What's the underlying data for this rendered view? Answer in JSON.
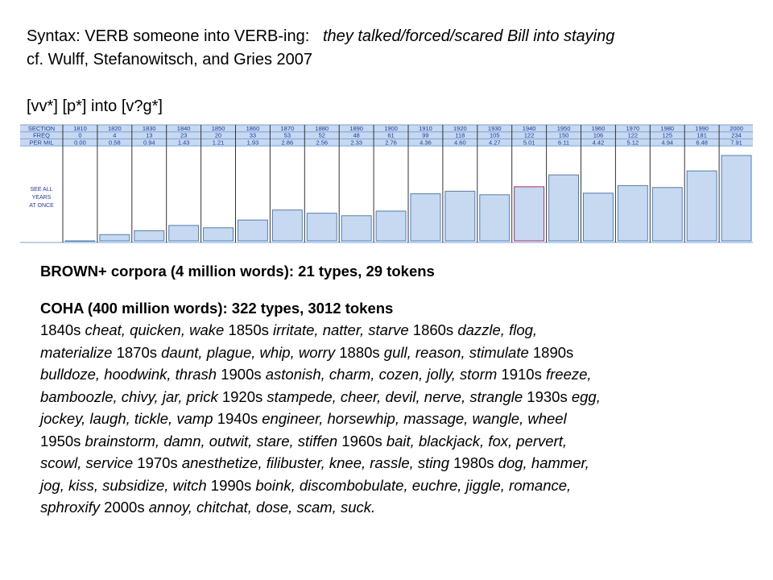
{
  "header": {
    "line1_label": "Syntax:  VERB someone into VERB-ing:",
    "line1_example": "they talked/forced/scared  Bill into staying",
    "line2": "cf. Wulff, Stefanowitsch, and Gries 2007",
    "query": "[vv*] [p*] into [v?g*]"
  },
  "chart_data": {
    "type": "bar",
    "row_labels": [
      "SECTION",
      "FREQ",
      "PER MIL"
    ],
    "categories": [
      "1810",
      "1820",
      "1830",
      "1840",
      "1850",
      "1860",
      "1870",
      "1880",
      "1890",
      "1900",
      "1910",
      "1920",
      "1930",
      "1940",
      "1950",
      "1960",
      "1970",
      "1980",
      "1990",
      "2000"
    ],
    "freq": [
      "0",
      "4",
      "13",
      "23",
      "20",
      "33",
      "53",
      "52",
      "48",
      "61",
      "99",
      "118",
      "105",
      "122",
      "150",
      "106",
      "122",
      "125",
      "181",
      "234"
    ],
    "per_mil_labels": [
      "0.00",
      "0.58",
      "0.94",
      "1.43",
      "1.21",
      "1.93",
      "2.86",
      "2.56",
      "2.33",
      "2.76",
      "4.36",
      "4.60",
      "4.27",
      "5.01",
      "6.11",
      "4.42",
      "5.12",
      "4.94",
      "6.48",
      "7.91"
    ],
    "values": [
      0.0,
      0.58,
      0.94,
      1.43,
      1.21,
      1.93,
      2.86,
      2.56,
      2.33,
      2.76,
      4.36,
      4.6,
      4.27,
      5.01,
      6.11,
      4.42,
      5.12,
      4.94,
      6.48,
      7.91
    ],
    "ylim": [
      0,
      7.91
    ],
    "see_all_lines": [
      "SEE ALL",
      "YEARS",
      "AT ONCE"
    ],
    "highlighted_category": "1940",
    "colors": {
      "header_bg": "#c6d9f1",
      "bar_fill": "#c6d9f1",
      "bar_stroke": "#4a7ebb",
      "highlight_stroke": "#a0306a",
      "label_color": "#1f3a9a",
      "grid": "#7f9fcf"
    }
  },
  "brown": "BROWN+ corpora (4 million words): 21 types, 29 tokens",
  "coha": {
    "title": "COHA (400 million words): 322 types, 3012 tokens",
    "lines": [
      [
        {
          "t": "1840s "
        },
        {
          "t": "cheat, quicken, wake",
          "i": true
        },
        {
          "t": " 1850s "
        },
        {
          "t": "irritate, natter, starve",
          "i": true
        },
        {
          "t": " 1860s "
        },
        {
          "t": "dazzle, flog,",
          "i": true
        }
      ],
      [
        {
          "t": "materialize",
          "i": true
        },
        {
          "t": " 1870s "
        },
        {
          "t": "daunt, plague, whip, worry",
          "i": true
        },
        {
          "t": " 1880s "
        },
        {
          "t": "gull, reason, stimulate",
          "i": true
        },
        {
          "t": " 1890s"
        }
      ],
      [
        {
          "t": "bulldoze, hoodwink, thrash",
          "i": true
        },
        {
          "t": " 1900s "
        },
        {
          "t": "astonish, charm, cozen, jolly, storm",
          "i": true
        },
        {
          "t": " 1910s "
        },
        {
          "t": "freeze,",
          "i": true
        }
      ],
      [
        {
          "t": "bamboozle, chivy, jar, prick",
          "i": true
        },
        {
          "t": " 1920s "
        },
        {
          "t": "stampede, cheer, devil, nerve, strangle",
          "i": true
        },
        {
          "t": " 1930s "
        },
        {
          "t": "egg,",
          "i": true
        }
      ],
      [
        {
          "t": "jockey, laugh, tickle, vamp",
          "i": true
        },
        {
          "t": " 1940s "
        },
        {
          "t": "engineer, horsewhip, massage, wangle, wheel",
          "i": true
        }
      ],
      [
        {
          "t": "1950s "
        },
        {
          "t": "brainstorm, damn, outwit, stare, stiffen",
          "i": true
        },
        {
          "t": " 1960s "
        },
        {
          "t": "bait, blackjack, fox, pervert,",
          "i": true
        }
      ],
      [
        {
          "t": "scowl, service",
          "i": true
        },
        {
          "t": " 1970s "
        },
        {
          "t": "anesthetize, filibuster, knee, rassle, sting",
          "i": true
        },
        {
          "t": " 1980s "
        },
        {
          "t": "dog, hammer,",
          "i": true
        }
      ],
      [
        {
          "t": "jog, kiss, subsidize, witch",
          "i": true
        },
        {
          "t": " 1990s "
        },
        {
          "t": "boink, discombobulate, euchre, jiggle, romance,",
          "i": true
        }
      ],
      [
        {
          "t": "sphroxify",
          "i": true
        },
        {
          "t": " 2000s "
        },
        {
          "t": "annoy, chitchat, dose, scam, suck.",
          "i": true
        }
      ]
    ]
  }
}
